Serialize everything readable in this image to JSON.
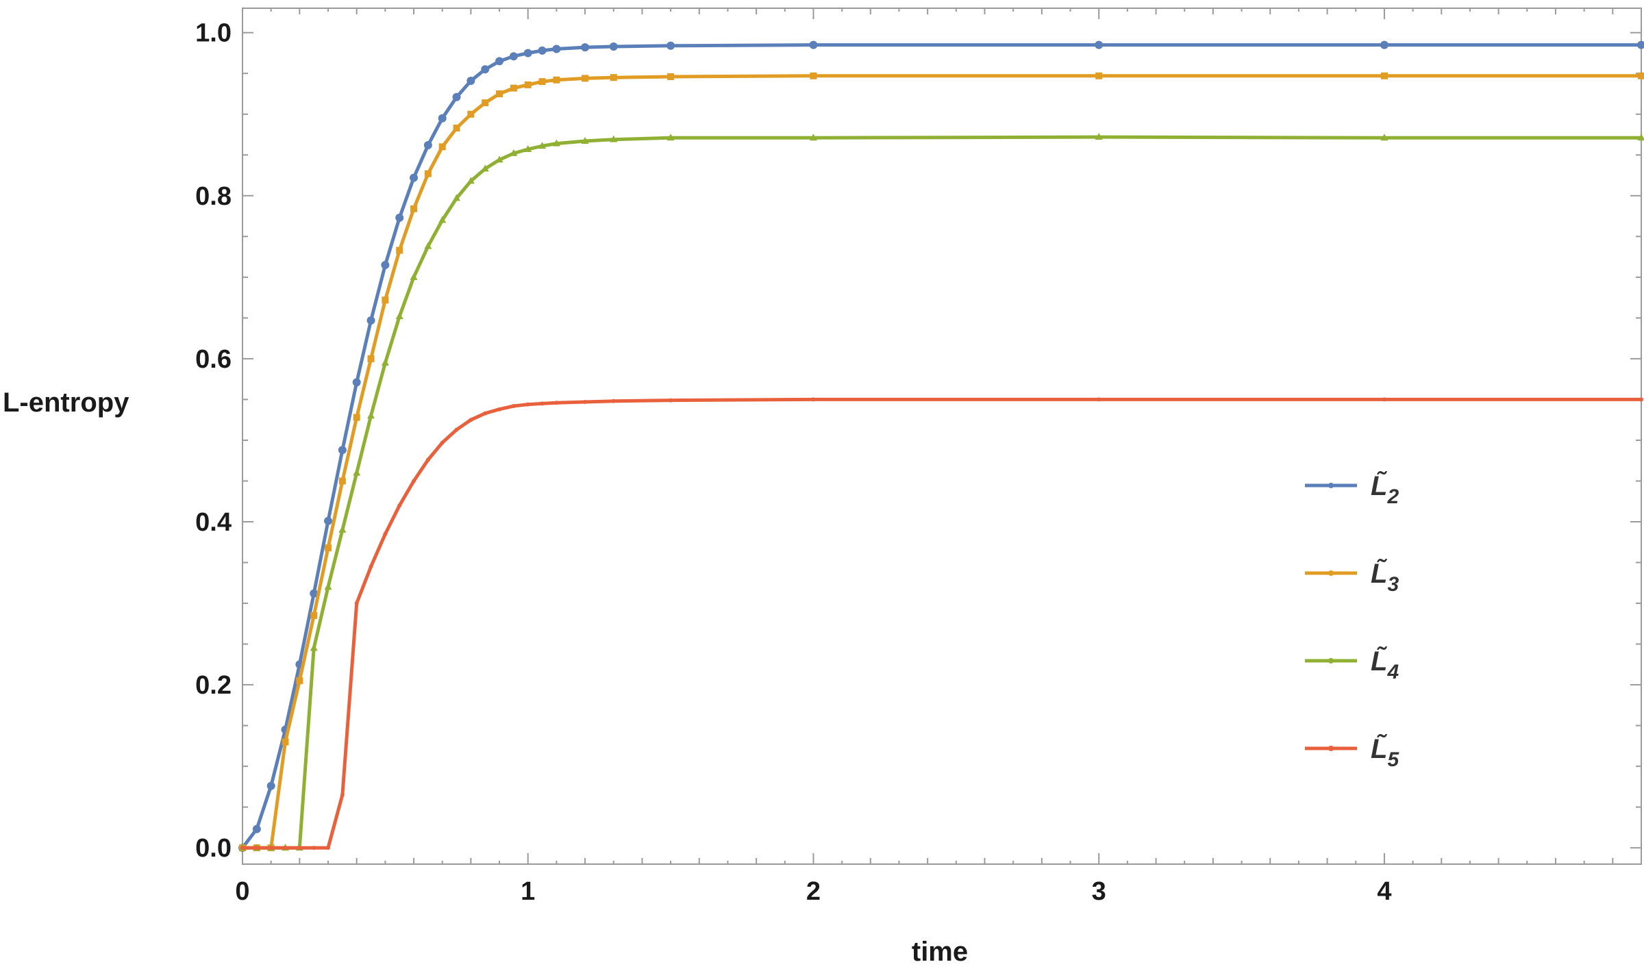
{
  "chart_data": {
    "type": "line",
    "title": "",
    "xlabel": "time",
    "ylabel": "L-entropy",
    "xlim": [
      0,
      4.9
    ],
    "ylim": [
      -0.02,
      1.03
    ],
    "x_ticks": [
      0,
      1,
      2,
      3,
      4
    ],
    "x_tick_labels": [
      "0",
      "1",
      "2",
      "3",
      "4"
    ],
    "y_ticks": [
      0.0,
      0.2,
      0.4,
      0.6,
      0.8,
      1.0
    ],
    "y_tick_labels": [
      "0.0",
      "0.2",
      "0.4",
      "0.6",
      "0.8",
      "1.0"
    ],
    "grid": false,
    "legend_position": "right",
    "series": [
      {
        "name": "L̃2",
        "legend_base": "L̃",
        "legend_sub": "2",
        "color": "#5b7fb9",
        "marker": "circle",
        "x": [
          0,
          0.05,
          0.1,
          0.15,
          0.2,
          0.25,
          0.3,
          0.35,
          0.4,
          0.45,
          0.5,
          0.55,
          0.6,
          0.65,
          0.7,
          0.75,
          0.8,
          0.85,
          0.9,
          0.95,
          1.0,
          1.05,
          1.1,
          1.2,
          1.3,
          1.5,
          2.0,
          3.0,
          4.0,
          4.9
        ],
        "y": [
          0.0,
          0.023,
          0.076,
          0.145,
          0.225,
          0.312,
          0.401,
          0.488,
          0.571,
          0.647,
          0.715,
          0.773,
          0.822,
          0.862,
          0.895,
          0.921,
          0.941,
          0.955,
          0.965,
          0.971,
          0.975,
          0.978,
          0.98,
          0.982,
          0.983,
          0.984,
          0.985,
          0.985,
          0.985,
          0.985
        ]
      },
      {
        "name": "L̃3",
        "legend_base": "L̃",
        "legend_sub": "3",
        "color": "#e19c24",
        "marker": "square",
        "x": [
          0,
          0.05,
          0.1,
          0.15,
          0.2,
          0.25,
          0.3,
          0.35,
          0.4,
          0.45,
          0.5,
          0.55,
          0.6,
          0.65,
          0.7,
          0.75,
          0.8,
          0.85,
          0.9,
          0.95,
          1.0,
          1.05,
          1.1,
          1.2,
          1.3,
          1.5,
          2.0,
          3.0,
          4.0,
          4.9
        ],
        "y": [
          0.0,
          0.0,
          0.0,
          0.13,
          0.205,
          0.285,
          0.368,
          0.45,
          0.528,
          0.6,
          0.672,
          0.733,
          0.784,
          0.827,
          0.86,
          0.883,
          0.9,
          0.914,
          0.925,
          0.932,
          0.936,
          0.94,
          0.942,
          0.944,
          0.945,
          0.946,
          0.947,
          0.947,
          0.947,
          0.947
        ]
      },
      {
        "name": "L̃4",
        "legend_base": "L̃",
        "legend_sub": "4",
        "color": "#8fb032",
        "marker": "triangle",
        "x": [
          0,
          0.05,
          0.1,
          0.15,
          0.2,
          0.25,
          0.3,
          0.35,
          0.4,
          0.45,
          0.5,
          0.55,
          0.6,
          0.65,
          0.7,
          0.75,
          0.8,
          0.85,
          0.9,
          0.95,
          1.0,
          1.05,
          1.1,
          1.2,
          1.3,
          1.5,
          2.0,
          3.0,
          4.0,
          4.9
        ],
        "y": [
          0.0,
          0.0,
          0.0,
          0.0,
          0.0,
          0.245,
          0.32,
          0.39,
          0.46,
          0.53,
          0.595,
          0.652,
          0.7,
          0.738,
          0.77,
          0.797,
          0.818,
          0.833,
          0.844,
          0.852,
          0.857,
          0.861,
          0.864,
          0.867,
          0.869,
          0.871,
          0.871,
          0.872,
          0.871,
          0.871
        ]
      },
      {
        "name": "L̃5",
        "legend_base": "L̃",
        "legend_sub": "5",
        "color": "#e8603c",
        "marker": "none",
        "x": [
          0,
          0.05,
          0.1,
          0.15,
          0.2,
          0.25,
          0.3,
          0.35,
          0.4,
          0.45,
          0.5,
          0.55,
          0.6,
          0.65,
          0.7,
          0.75,
          0.8,
          0.85,
          0.9,
          0.95,
          1.0,
          1.05,
          1.1,
          1.2,
          1.3,
          1.5,
          2.0,
          3.0,
          4.0,
          4.9
        ],
        "y": [
          0.0,
          0.0,
          0.0,
          0.0,
          0.0,
          0.0,
          0.0,
          0.065,
          0.3,
          0.345,
          0.385,
          0.42,
          0.45,
          0.476,
          0.497,
          0.513,
          0.525,
          0.533,
          0.538,
          0.542,
          0.544,
          0.545,
          0.546,
          0.547,
          0.548,
          0.549,
          0.55,
          0.55,
          0.55,
          0.55
        ]
      }
    ]
  }
}
